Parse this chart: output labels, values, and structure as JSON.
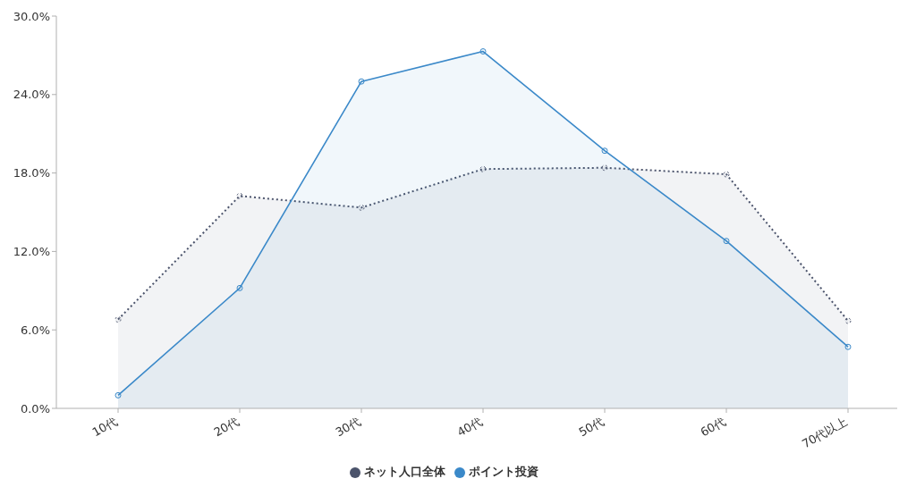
{
  "chart_data": {
    "type": "area",
    "categories": [
      "10代",
      "20代",
      "30代",
      "40代",
      "50代",
      "60代",
      "70代以上"
    ],
    "series": [
      {
        "name": "ネット人口全体",
        "color": "#4b536b",
        "line_style": "dotted",
        "values": [
          6.8,
          16.25,
          15.35,
          18.3,
          18.4,
          17.9,
          6.7
        ]
      },
      {
        "name": "ポイント投資",
        "color": "#3b89c9",
        "line_style": "solid",
        "values": [
          1.0,
          9.2,
          25.0,
          27.3,
          19.7,
          12.8,
          4.7
        ]
      }
    ],
    "ylim": [
      0,
      30
    ],
    "yticks": [
      {
        "value": 0,
        "label": "0.0%"
      },
      {
        "value": 6,
        "label": "6.0%"
      },
      {
        "value": 12,
        "label": "12.0%"
      },
      {
        "value": 18,
        "label": "18.0%"
      },
      {
        "value": 24,
        "label": "24.0%"
      },
      {
        "value": 30,
        "label": "30.0%"
      }
    ],
    "marker": "circle",
    "legend": "bottom"
  }
}
